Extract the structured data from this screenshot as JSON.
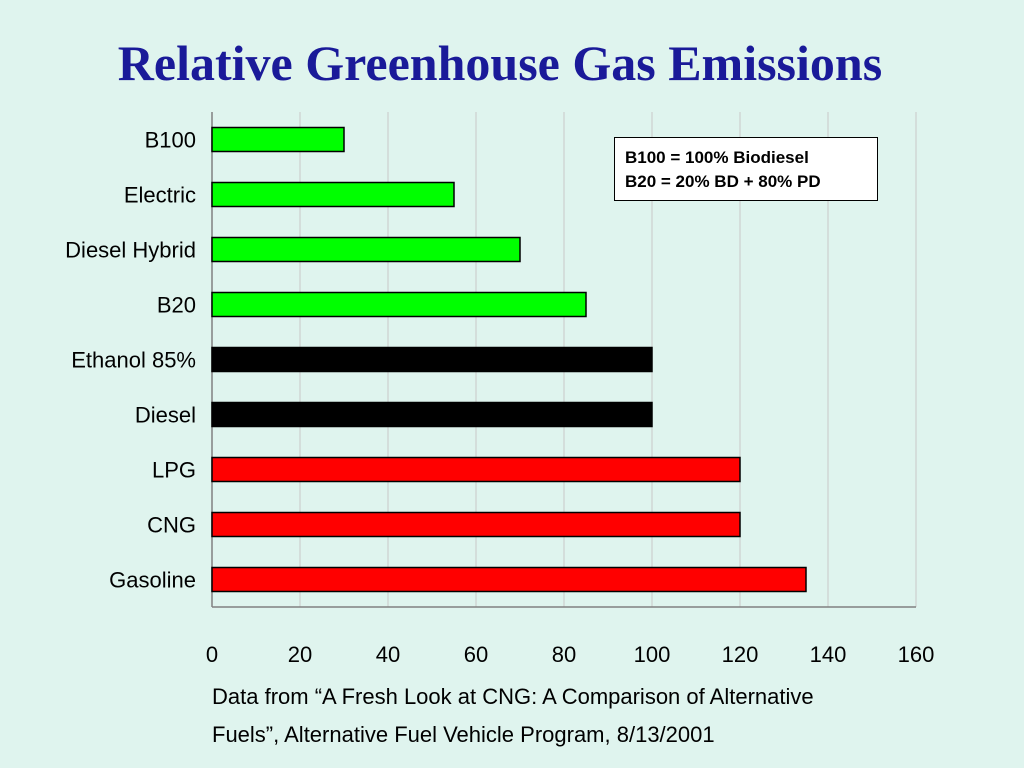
{
  "slide": {
    "title": "Relative Greenhouse Gas Emissions",
    "note_lines": [
      "B100 = 100% Biodiesel",
      "B20 = 20% BD + 80% PD"
    ],
    "source_lines": [
      "Data from “A Fresh Look at CNG: A Comparison of Alternative",
      "Fuels”, Alternative Fuel Vehicle Program, 8/13/2001"
    ]
  },
  "colors": {
    "background": "#dff4ee",
    "title": "#1a1a99",
    "green": "#00ff00",
    "black": "#000000",
    "red": "#ff0000",
    "gridline": "#c8c8c8"
  },
  "chart_data": {
    "type": "bar",
    "orientation": "horizontal",
    "title": "Relative Greenhouse Gas Emissions",
    "xlabel": "",
    "ylabel": "",
    "xlim": [
      0,
      160
    ],
    "x_ticks": [
      0,
      20,
      40,
      60,
      80,
      100,
      120,
      140,
      160
    ],
    "grid": "vertical",
    "legend": "top-right",
    "categories": [
      "B100",
      "Electric",
      "Diesel Hybrid",
      "B20",
      "Ethanol 85%",
      "Diesel",
      "LPG",
      "CNG",
      "Gasoline"
    ],
    "values": [
      30,
      55,
      70,
      85,
      100,
      100,
      120,
      120,
      135
    ],
    "bar_colors": [
      "green",
      "green",
      "green",
      "green",
      "black",
      "black",
      "red",
      "red",
      "red"
    ]
  }
}
